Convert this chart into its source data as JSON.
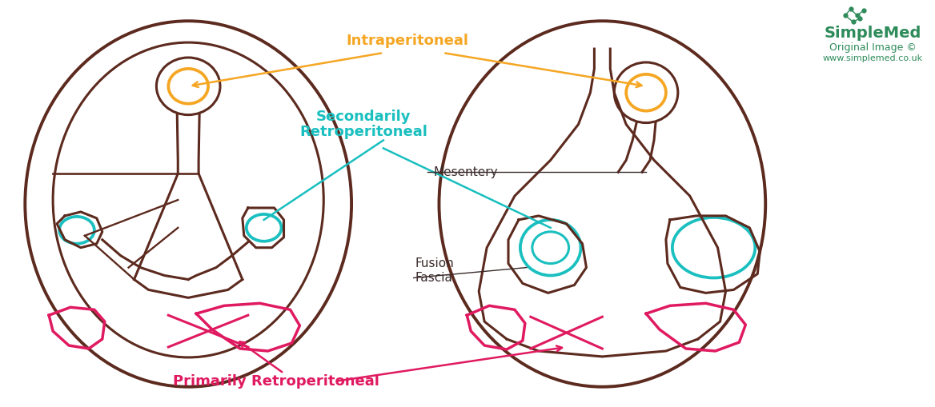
{
  "bg_color": "#ffffff",
  "dark_brown": "#5C2A1E",
  "orange": "#F5A623",
  "teal": "#1ABFBF",
  "pink": "#E01A60",
  "text_dark": "#3A2A2A",
  "sm_color": "#2E8B5A",
  "label_intra": "Intraperitoneal",
  "label_sec_1": "Secondarily",
  "label_sec_2": "Retroperitoneal",
  "label_mesen": "Mesentery",
  "label_fus_1": "Fusion",
  "label_fus_2": "Fascia",
  "label_prim": "Primarily Retroperitoneal",
  "sm_name": "SimpleMed",
  "sm_orig": "Original Image ©",
  "sm_web": "www.simplemed.co.uk"
}
